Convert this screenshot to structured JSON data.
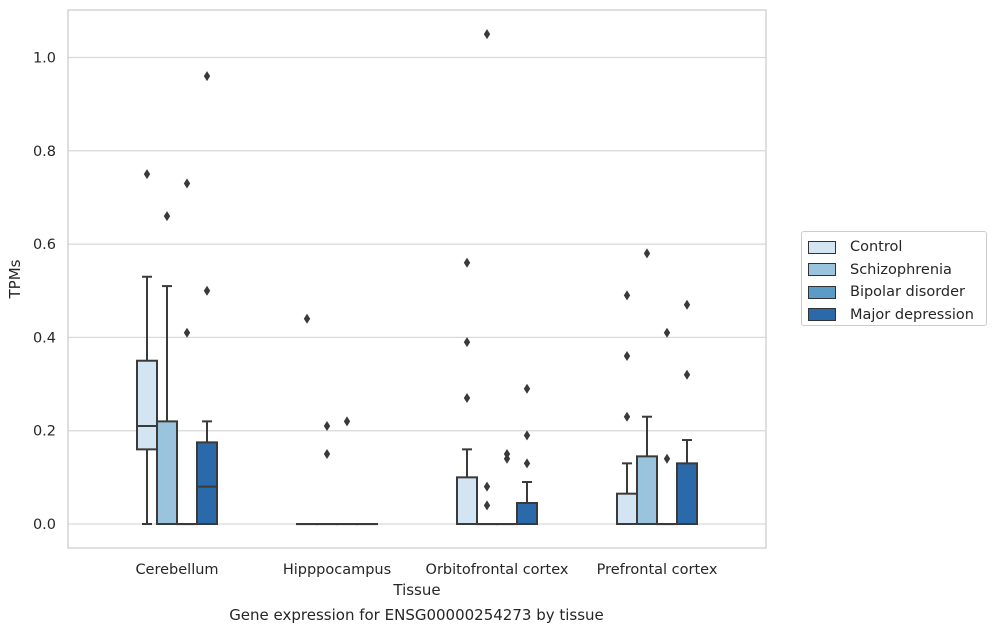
{
  "caption": "Gene expression for ENSG00000254273 by tissue",
  "chart_data": {
    "type": "box",
    "title": "",
    "xlabel": "Tissue",
    "ylabel": "TPMs",
    "ylim": [
      -0.05,
      1.1
    ],
    "yticks": [
      0.0,
      0.2,
      0.4,
      0.6,
      0.8,
      1.0
    ],
    "ytick_labels": [
      "0.0",
      "0.2",
      "0.4",
      "0.6",
      "0.8",
      "1.0"
    ],
    "grid": "horizontal",
    "legend_position": "center-right",
    "categories": [
      "Cerebellum",
      "Hipppocampus",
      "Orbitofrontal cortex",
      "Prefrontal cortex"
    ],
    "series": [
      {
        "name": "Control",
        "color": "#d3e4f3",
        "boxes": [
          {
            "min": 0.0,
            "q1": 0.16,
            "median": 0.21,
            "q3": 0.35,
            "max": 0.53,
            "outliers": [
              0.75
            ]
          },
          {
            "min": 0.0,
            "q1": 0.0,
            "median": 0.0,
            "q3": 0.0,
            "max": 0.0,
            "outliers": [
              0.44
            ]
          },
          {
            "min": 0.0,
            "q1": 0.0,
            "median": 0.0,
            "q3": 0.1,
            "max": 0.16,
            "outliers": [
              0.27,
              0.39,
              0.56
            ]
          },
          {
            "min": 0.0,
            "q1": 0.0,
            "median": 0.0,
            "q3": 0.065,
            "max": 0.13,
            "outliers": [
              0.23,
              0.36,
              0.49
            ]
          }
        ]
      },
      {
        "name": "Schizophrenia",
        "color": "#9ac3dd",
        "boxes": [
          {
            "min": 0.0,
            "q1": 0.0,
            "median": 0.0,
            "q3": 0.22,
            "max": 0.51,
            "outliers": [
              0.66
            ]
          },
          {
            "min": 0.0,
            "q1": 0.0,
            "median": 0.0,
            "q3": 0.0,
            "max": 0.0,
            "outliers": [
              0.15,
              0.21
            ]
          },
          {
            "min": 0.0,
            "q1": 0.0,
            "median": 0.0,
            "q3": 0.0,
            "max": 0.0,
            "outliers": [
              0.04,
              0.08,
              1.05
            ]
          },
          {
            "min": 0.0,
            "q1": 0.0,
            "median": 0.0,
            "q3": 0.145,
            "max": 0.23,
            "outliers": [
              0.58
            ]
          }
        ]
      },
      {
        "name": "Bipolar disorder",
        "color": "#5b9bc8",
        "boxes": [
          {
            "min": 0.0,
            "q1": 0.0,
            "median": 0.0,
            "q3": 0.0,
            "max": 0.0,
            "outliers": [
              0.41,
              0.73
            ]
          },
          {
            "min": 0.0,
            "q1": 0.0,
            "median": 0.0,
            "q3": 0.0,
            "max": 0.0,
            "outliers": [
              0.22
            ]
          },
          {
            "min": 0.0,
            "q1": 0.0,
            "median": 0.0,
            "q3": 0.0,
            "max": 0.0,
            "outliers": [
              0.14,
              0.15
            ]
          },
          {
            "min": 0.0,
            "q1": 0.0,
            "median": 0.0,
            "q3": 0.0,
            "max": 0.0,
            "outliers": [
              0.14,
              0.41
            ]
          }
        ]
      },
      {
        "name": "Major depression",
        "color": "#2a6aaa",
        "boxes": [
          {
            "min": 0.0,
            "q1": 0.0,
            "median": 0.08,
            "q3": 0.175,
            "max": 0.22,
            "outliers": [
              0.5,
              0.96
            ]
          },
          {
            "min": 0.0,
            "q1": 0.0,
            "median": 0.0,
            "q3": 0.0,
            "max": 0.0,
            "outliers": []
          },
          {
            "min": 0.0,
            "q1": 0.0,
            "median": 0.0,
            "q3": 0.045,
            "max": 0.09,
            "outliers": [
              0.13,
              0.19,
              0.29
            ]
          },
          {
            "min": 0.0,
            "q1": 0.0,
            "median": 0.0,
            "q3": 0.13,
            "max": 0.18,
            "outliers": [
              0.32,
              0.47
            ]
          }
        ]
      }
    ]
  }
}
